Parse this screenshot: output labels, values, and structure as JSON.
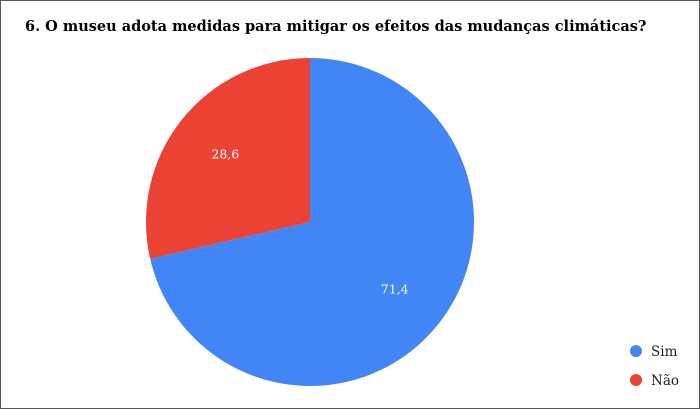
{
  "chart_data": {
    "type": "pie",
    "title": "6. O museu adota medidas para mitigar os efeitos das mudanças climáticas?",
    "categories": [
      "Sim",
      "Não"
    ],
    "values": [
      71.4,
      28.6
    ],
    "value_labels": [
      "71,4",
      "28,6"
    ],
    "colors": [
      "#4285f4",
      "#ea4335"
    ],
    "legend_position": "bottom-right",
    "start": "top, clockwise"
  }
}
